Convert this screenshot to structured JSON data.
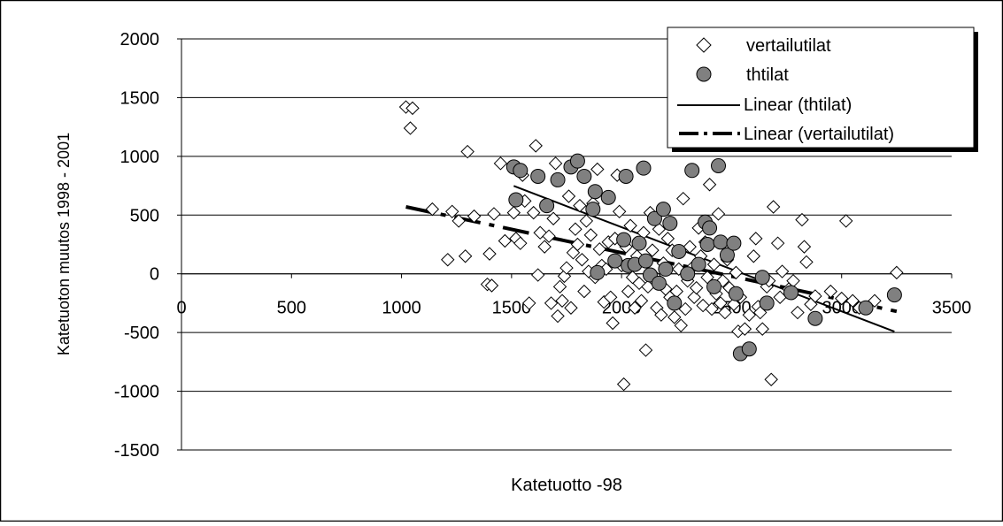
{
  "chart_data": {
    "type": "scatter",
    "xlabel": "Katetuotto -98",
    "ylabel": "Katetuoton muutos 1998 - 2001",
    "xlim": [
      0,
      3500
    ],
    "ylim": [
      -1500,
      2000
    ],
    "x_ticks": [
      "0",
      "500",
      "1000",
      "1500",
      "2000",
      "2500",
      "3000",
      "3500"
    ],
    "y_ticks": [
      "2000",
      "1500",
      "1000",
      "500",
      "0",
      "-500",
      "-1000",
      "-1500"
    ],
    "grid": "horizontal",
    "legend_position": "top-right",
    "legend": {
      "vertailutilat": "vertailutilat",
      "thtilat": "thtilat",
      "linear_thtilat": "Linear (thtilat)",
      "linear_vertailutilat": "Linear (vertailutilat)"
    },
    "series": [
      {
        "name": "vertailutilat",
        "marker": "diamond-open",
        "points": [
          [
            1020,
            1420
          ],
          [
            1050,
            1410
          ],
          [
            1040,
            1240
          ],
          [
            1140,
            550
          ],
          [
            1210,
            120
          ],
          [
            1230,
            530
          ],
          [
            1260,
            450
          ],
          [
            1290,
            150
          ],
          [
            1300,
            1040
          ],
          [
            1330,
            490
          ],
          [
            1390,
            -90
          ],
          [
            1400,
            170
          ],
          [
            1410,
            -100
          ],
          [
            1420,
            510
          ],
          [
            1450,
            940
          ],
          [
            1470,
            280
          ],
          [
            1510,
            520
          ],
          [
            1520,
            300
          ],
          [
            1540,
            260
          ],
          [
            1550,
            840
          ],
          [
            1560,
            620
          ],
          [
            1580,
            -250
          ],
          [
            1600,
            520
          ],
          [
            1610,
            1090
          ],
          [
            1620,
            -10
          ],
          [
            1630,
            350
          ],
          [
            1650,
            230
          ],
          [
            1670,
            320
          ],
          [
            1680,
            -250
          ],
          [
            1690,
            470
          ],
          [
            1700,
            940
          ],
          [
            1710,
            -360
          ],
          [
            1720,
            -110
          ],
          [
            1730,
            -230
          ],
          [
            1740,
            -20
          ],
          [
            1750,
            50
          ],
          [
            1760,
            660
          ],
          [
            1770,
            -290
          ],
          [
            1780,
            180
          ],
          [
            1790,
            380
          ],
          [
            1800,
            250
          ],
          [
            1810,
            580
          ],
          [
            1820,
            120
          ],
          [
            1830,
            -150
          ],
          [
            1840,
            450
          ],
          [
            1850,
            20
          ],
          [
            1860,
            330
          ],
          [
            1870,
            600
          ],
          [
            1880,
            -30
          ],
          [
            1890,
            890
          ],
          [
            1900,
            210
          ],
          [
            1910,
            70
          ],
          [
            1920,
            -240
          ],
          [
            1930,
            40
          ],
          [
            1940,
            270
          ],
          [
            1950,
            -200
          ],
          [
            1960,
            -420
          ],
          [
            1970,
            300
          ],
          [
            1980,
            840
          ],
          [
            1990,
            530
          ],
          [
            2000,
            70
          ],
          [
            2010,
            -940
          ],
          [
            2020,
            230
          ],
          [
            2030,
            -150
          ],
          [
            2040,
            410
          ],
          [
            2050,
            -30
          ],
          [
            2060,
            -290
          ],
          [
            2070,
            150
          ],
          [
            2080,
            -80
          ],
          [
            2090,
            -230
          ],
          [
            2100,
            350
          ],
          [
            2110,
            -650
          ],
          [
            2120,
            -110
          ],
          [
            2130,
            520
          ],
          [
            2140,
            200
          ],
          [
            2150,
            -20
          ],
          [
            2160,
            -290
          ],
          [
            2170,
            380
          ],
          [
            2180,
            -350
          ],
          [
            2190,
            90
          ],
          [
            2200,
            -130
          ],
          [
            2210,
            300
          ],
          [
            2220,
            -200
          ],
          [
            2230,
            200
          ],
          [
            2240,
            -370
          ],
          [
            2250,
            -150
          ],
          [
            2260,
            40
          ],
          [
            2270,
            -440
          ],
          [
            2280,
            640
          ],
          [
            2290,
            -300
          ],
          [
            2300,
            -60
          ],
          [
            2310,
            230
          ],
          [
            2320,
            50
          ],
          [
            2330,
            -200
          ],
          [
            2340,
            -120
          ],
          [
            2350,
            390
          ],
          [
            2360,
            150
          ],
          [
            2370,
            -270
          ],
          [
            2380,
            270
          ],
          [
            2390,
            -30
          ],
          [
            2400,
            760
          ],
          [
            2410,
            -300
          ],
          [
            2420,
            80
          ],
          [
            2430,
            -170
          ],
          [
            2440,
            510
          ],
          [
            2450,
            -250
          ],
          [
            2460,
            -60
          ],
          [
            2470,
            -330
          ],
          [
            2480,
            120
          ],
          [
            2490,
            -120
          ],
          [
            2510,
            -260
          ],
          [
            2520,
            10
          ],
          [
            2530,
            -490
          ],
          [
            2540,
            -200
          ],
          [
            2560,
            -470
          ],
          [
            2580,
            -350
          ],
          [
            2600,
            150
          ],
          [
            2610,
            300
          ],
          [
            2620,
            -280
          ],
          [
            2630,
            -330
          ],
          [
            2640,
            -470
          ],
          [
            2660,
            -110
          ],
          [
            2670,
            -60
          ],
          [
            2680,
            -900
          ],
          [
            2690,
            570
          ],
          [
            2710,
            260
          ],
          [
            2720,
            -200
          ],
          [
            2730,
            20
          ],
          [
            2760,
            -130
          ],
          [
            2780,
            -60
          ],
          [
            2800,
            -330
          ],
          [
            2820,
            460
          ],
          [
            2830,
            230
          ],
          [
            2840,
            100
          ],
          [
            2860,
            -260
          ],
          [
            2880,
            -190
          ],
          [
            2950,
            -150
          ],
          [
            3000,
            -210
          ],
          [
            3020,
            450
          ],
          [
            3050,
            -230
          ],
          [
            3080,
            -290
          ],
          [
            3150,
            -230
          ],
          [
            3250,
            10
          ]
        ]
      },
      {
        "name": "thtilat",
        "marker": "circle-filled",
        "points": [
          [
            1510,
            910
          ],
          [
            1520,
            630
          ],
          [
            1540,
            880
          ],
          [
            1620,
            830
          ],
          [
            1660,
            580
          ],
          [
            1710,
            800
          ],
          [
            1770,
            910
          ],
          [
            1800,
            960
          ],
          [
            1830,
            830
          ],
          [
            1870,
            550
          ],
          [
            1880,
            700
          ],
          [
            1890,
            10
          ],
          [
            1940,
            650
          ],
          [
            1970,
            110
          ],
          [
            2010,
            290
          ],
          [
            2020,
            830
          ],
          [
            2030,
            70
          ],
          [
            2060,
            80
          ],
          [
            2080,
            260
          ],
          [
            2100,
            900
          ],
          [
            2110,
            110
          ],
          [
            2130,
            -10
          ],
          [
            2150,
            470
          ],
          [
            2170,
            -80
          ],
          [
            2190,
            550
          ],
          [
            2200,
            40
          ],
          [
            2220,
            430
          ],
          [
            2240,
            -250
          ],
          [
            2260,
            190
          ],
          [
            2300,
            0
          ],
          [
            2320,
            880
          ],
          [
            2350,
            80
          ],
          [
            2380,
            440
          ],
          [
            2390,
            250
          ],
          [
            2400,
            390
          ],
          [
            2420,
            -110
          ],
          [
            2440,
            920
          ],
          [
            2450,
            270
          ],
          [
            2480,
            160
          ],
          [
            2510,
            260
          ],
          [
            2520,
            -170
          ],
          [
            2540,
            -680
          ],
          [
            2580,
            -640
          ],
          [
            2640,
            -30
          ],
          [
            2660,
            -250
          ],
          [
            2770,
            -160
          ],
          [
            2880,
            -380
          ],
          [
            3110,
            -290
          ],
          [
            3240,
            -180
          ]
        ]
      }
    ],
    "trendlines": [
      {
        "name": "Linear (thtilat)",
        "style": "solid",
        "x": [
          1510,
          3240
        ],
        "y": [
          748,
          -492
        ]
      },
      {
        "name": "Linear (vertailutilat)",
        "style": "dashed",
        "x": [
          1020,
          3250
        ],
        "y": [
          570,
          -320
        ]
      }
    ]
  }
}
